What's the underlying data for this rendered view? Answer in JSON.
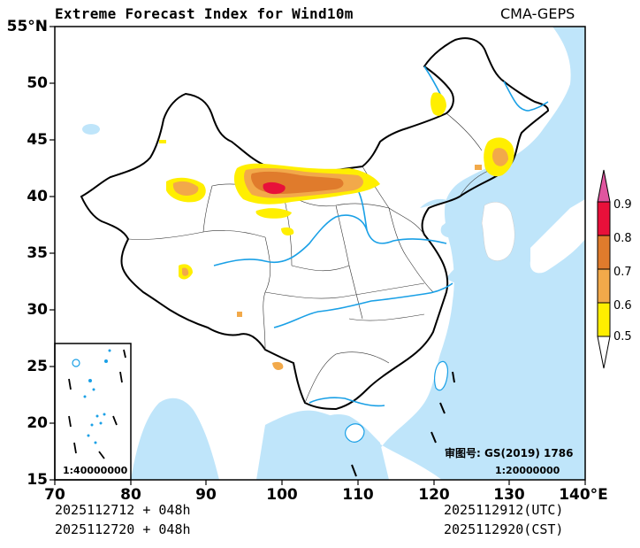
{
  "title": "Extreme Forecast Index for Wind10m",
  "model": "CMA-GEPS",
  "axes": {
    "y_ticks": [
      "55°N",
      "50",
      "45",
      "40",
      "35",
      "30",
      "25",
      "20",
      "15"
    ],
    "x_ticks": [
      "70",
      "80",
      "90",
      "100",
      "110",
      "120",
      "130",
      "140°E"
    ]
  },
  "time_info": {
    "init_utc": "2025112712 + 048h",
    "init_cst": "2025112720 + 048h",
    "valid_utc": "2025112912(UTC)",
    "valid_cst": "2025112920(CST)"
  },
  "map_notes": {
    "review_number": "审图号: GS(2019) 1786",
    "scale_main": "1:20000000",
    "scale_inset": "1:40000000"
  },
  "colorbar": {
    "labels": [
      "0.9",
      "0.8",
      "0.7",
      "0.6",
      "0.5"
    ],
    "levels": [
      0.5,
      0.6,
      0.7,
      0.8,
      0.9
    ],
    "colors": {
      "below": "#ffffff",
      "0.5-0.6": "#ffef00",
      "0.6-0.7": "#f2a94a",
      "0.7-0.8": "#e07b2c",
      "0.8-0.9": "#e8103a",
      "above": "#e0559f"
    }
  },
  "colors": {
    "ocean": "#bfe5fa",
    "rivers": "#1aa0e6",
    "border": "#000000"
  }
}
